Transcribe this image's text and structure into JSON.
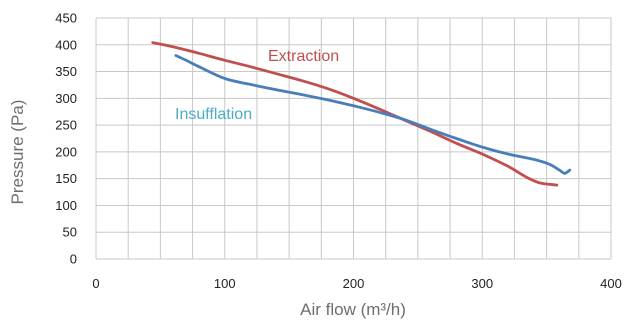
{
  "chart_data": {
    "type": "line",
    "xlabel": "Air flow (m³/h)",
    "ylabel": "Pressure (Pa)",
    "xlim": [
      0,
      400
    ],
    "ylim": [
      0,
      450
    ],
    "x_ticks": [
      "0",
      "100",
      "200",
      "300",
      "400"
    ],
    "y_ticks": [
      "0",
      "50",
      "100",
      "150",
      "200",
      "250",
      "300",
      "350",
      "400",
      "450"
    ],
    "grid": true,
    "series": [
      {
        "name": "Extraction",
        "color": "#c0504d",
        "points": [
          [
            44,
            404
          ],
          [
            60,
            396
          ],
          [
            80,
            384
          ],
          [
            100,
            371
          ],
          [
            120,
            359
          ],
          [
            140,
            346
          ],
          [
            160,
            333
          ],
          [
            180,
            318
          ],
          [
            200,
            300
          ],
          [
            220,
            280
          ],
          [
            240,
            259
          ],
          [
            260,
            238
          ],
          [
            280,
            216
          ],
          [
            300,
            196
          ],
          [
            320,
            173
          ],
          [
            335,
            152
          ],
          [
            345,
            142
          ],
          [
            358,
            138
          ]
        ]
      },
      {
        "name": "Insufflation",
        "color": "#4a7ebb",
        "points": [
          [
            62,
            380
          ],
          [
            70,
            371
          ],
          [
            80,
            359
          ],
          [
            100,
            337
          ],
          [
            120,
            326
          ],
          [
            140,
            316
          ],
          [
            160,
            307
          ],
          [
            180,
            297
          ],
          [
            200,
            286
          ],
          [
            220,
            274
          ],
          [
            240,
            260
          ],
          [
            260,
            242
          ],
          [
            280,
            225
          ],
          [
            300,
            209
          ],
          [
            320,
            196
          ],
          [
            340,
            186
          ],
          [
            352,
            177
          ],
          [
            360,
            166
          ],
          [
            364,
            160
          ],
          [
            368,
            166
          ]
        ]
      }
    ]
  }
}
